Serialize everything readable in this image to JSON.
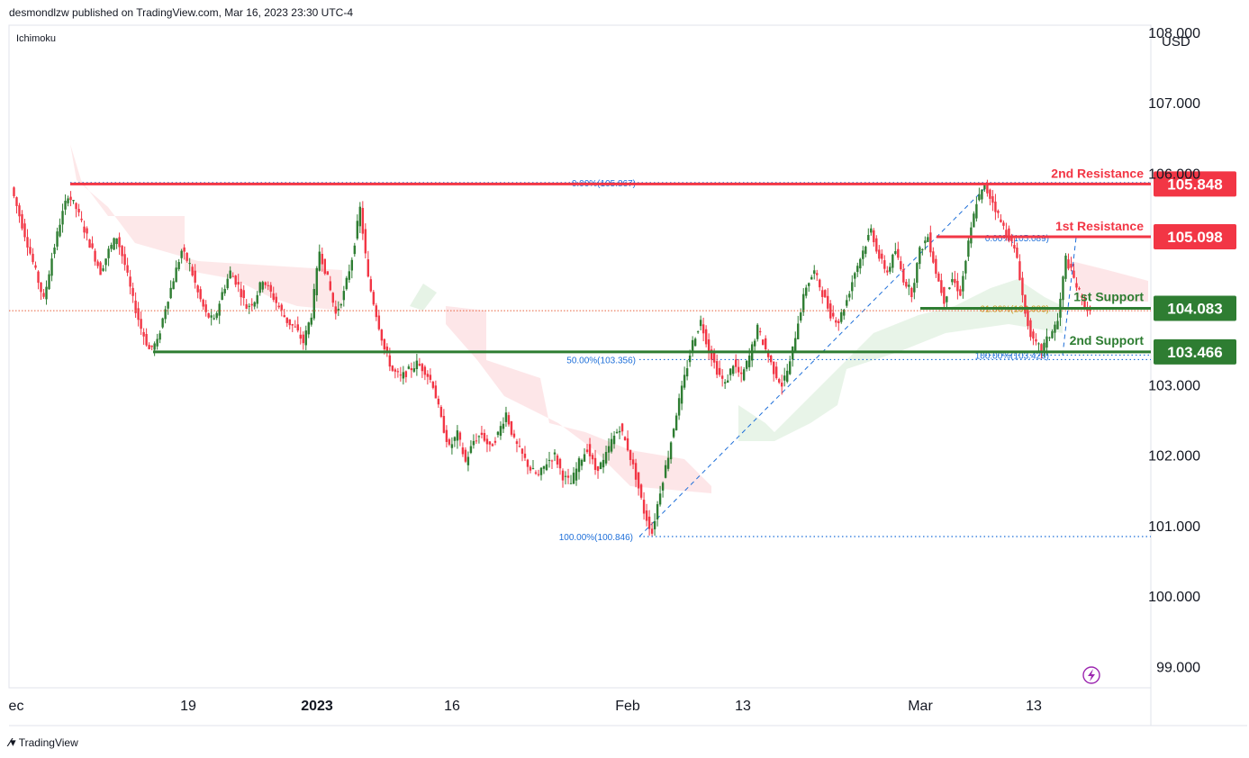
{
  "header": {
    "published_by": "desmondlzw published on TradingView.com, Mar 16, 2023 23:30 UTC-4"
  },
  "indicator_label": "Ichimoku",
  "footer": {
    "brand": "TradingView"
  },
  "colors": {
    "up": "#2e7d32",
    "down": "#f23645",
    "resistance": "#f23645",
    "support": "#2e7d32",
    "fib": "#1e6fd9",
    "cloud_bear": "#fde2e4",
    "cloud_bull": "#e6f3e6",
    "last_price_line": "#e8603c",
    "axis_text": "#131722",
    "lightning": "#9c27b0"
  },
  "chart_data": {
    "type": "candlestick",
    "title": "",
    "currency": "USD",
    "ylim": [
      98.7,
      108.1
    ],
    "y_ticks": [
      "108.000",
      "107.000",
      "106.000",
      "103.000",
      "102.000",
      "101.000",
      "100.000",
      "99.000"
    ],
    "x_ticks": [
      "ec",
      "19",
      "2023",
      "16",
      "Feb",
      "13",
      "Mar",
      "13"
    ],
    "levels": [
      {
        "name": "2nd Resistance",
        "value": 105.848,
        "label": "105.848",
        "kind": "resistance"
      },
      {
        "name": "1st Resistance",
        "value": 105.098,
        "label": "105.098",
        "kind": "resistance"
      },
      {
        "name": "1st Support",
        "value": 104.083,
        "label": "104.083",
        "kind": "support"
      },
      {
        "name": "2nd Support",
        "value": 103.466,
        "label": "103.466",
        "kind": "support"
      }
    ],
    "fib_labels": [
      {
        "text": "0.00%(105.867)",
        "value": 105.867
      },
      {
        "text": "50.00%(103.356)",
        "value": 103.356
      },
      {
        "text": "100.00%(100.846)",
        "value": 100.846
      },
      {
        "text": "0.00%(105.089)",
        "value": 105.089
      },
      {
        "text": "61.80%(104.083)",
        "value": 104.083
      },
      {
        "text": "100.00%(103.420)",
        "value": 103.42
      }
    ],
    "last_price": 104.05,
    "price_path": [
      105.8,
      105.4,
      105.0,
      104.6,
      104.2,
      104.8,
      105.3,
      105.7,
      105.5,
      105.2,
      104.9,
      104.6,
      104.9,
      105.1,
      104.7,
      104.2,
      103.8,
      103.5,
      103.6,
      104.1,
      104.5,
      104.9,
      104.7,
      104.3,
      104.0,
      103.9,
      104.3,
      104.6,
      104.4,
      104.1,
      104.2,
      104.5,
      104.3,
      104.1,
      103.9,
      103.8,
      103.6,
      104.0,
      104.9,
      104.5,
      104.0,
      104.3,
      104.8,
      105.5,
      104.5,
      104.0,
      103.5,
      103.2,
      103.1,
      103.2,
      103.3,
      103.2,
      103.0,
      102.5,
      102.1,
      102.3,
      101.9,
      102.2,
      102.3,
      102.1,
      102.3,
      102.6,
      102.2,
      102.0,
      101.8,
      101.7,
      101.9,
      102.0,
      101.7,
      101.6,
      101.9,
      102.1,
      101.8,
      101.9,
      102.2,
      102.4,
      102.1,
      101.7,
      101.2,
      100.9,
      101.5,
      102.0,
      102.6,
      103.1,
      103.6,
      103.9,
      103.5,
      103.2,
      103.0,
      103.3,
      103.1,
      103.4,
      103.8,
      103.5,
      103.2,
      103.0,
      103.3,
      103.9,
      104.4,
      104.6,
      104.3,
      104.0,
      103.9,
      104.2,
      104.6,
      104.9,
      105.2,
      104.8,
      104.6,
      104.9,
      104.5,
      104.3,
      104.9,
      105.1,
      104.6,
      104.2,
      104.5,
      104.3,
      105.0,
      105.6,
      105.8,
      105.6,
      105.3,
      105.1,
      104.8,
      104.0,
      103.6,
      103.5,
      103.7,
      103.9,
      104.8,
      104.5,
      104.2,
      104.0
    ]
  }
}
